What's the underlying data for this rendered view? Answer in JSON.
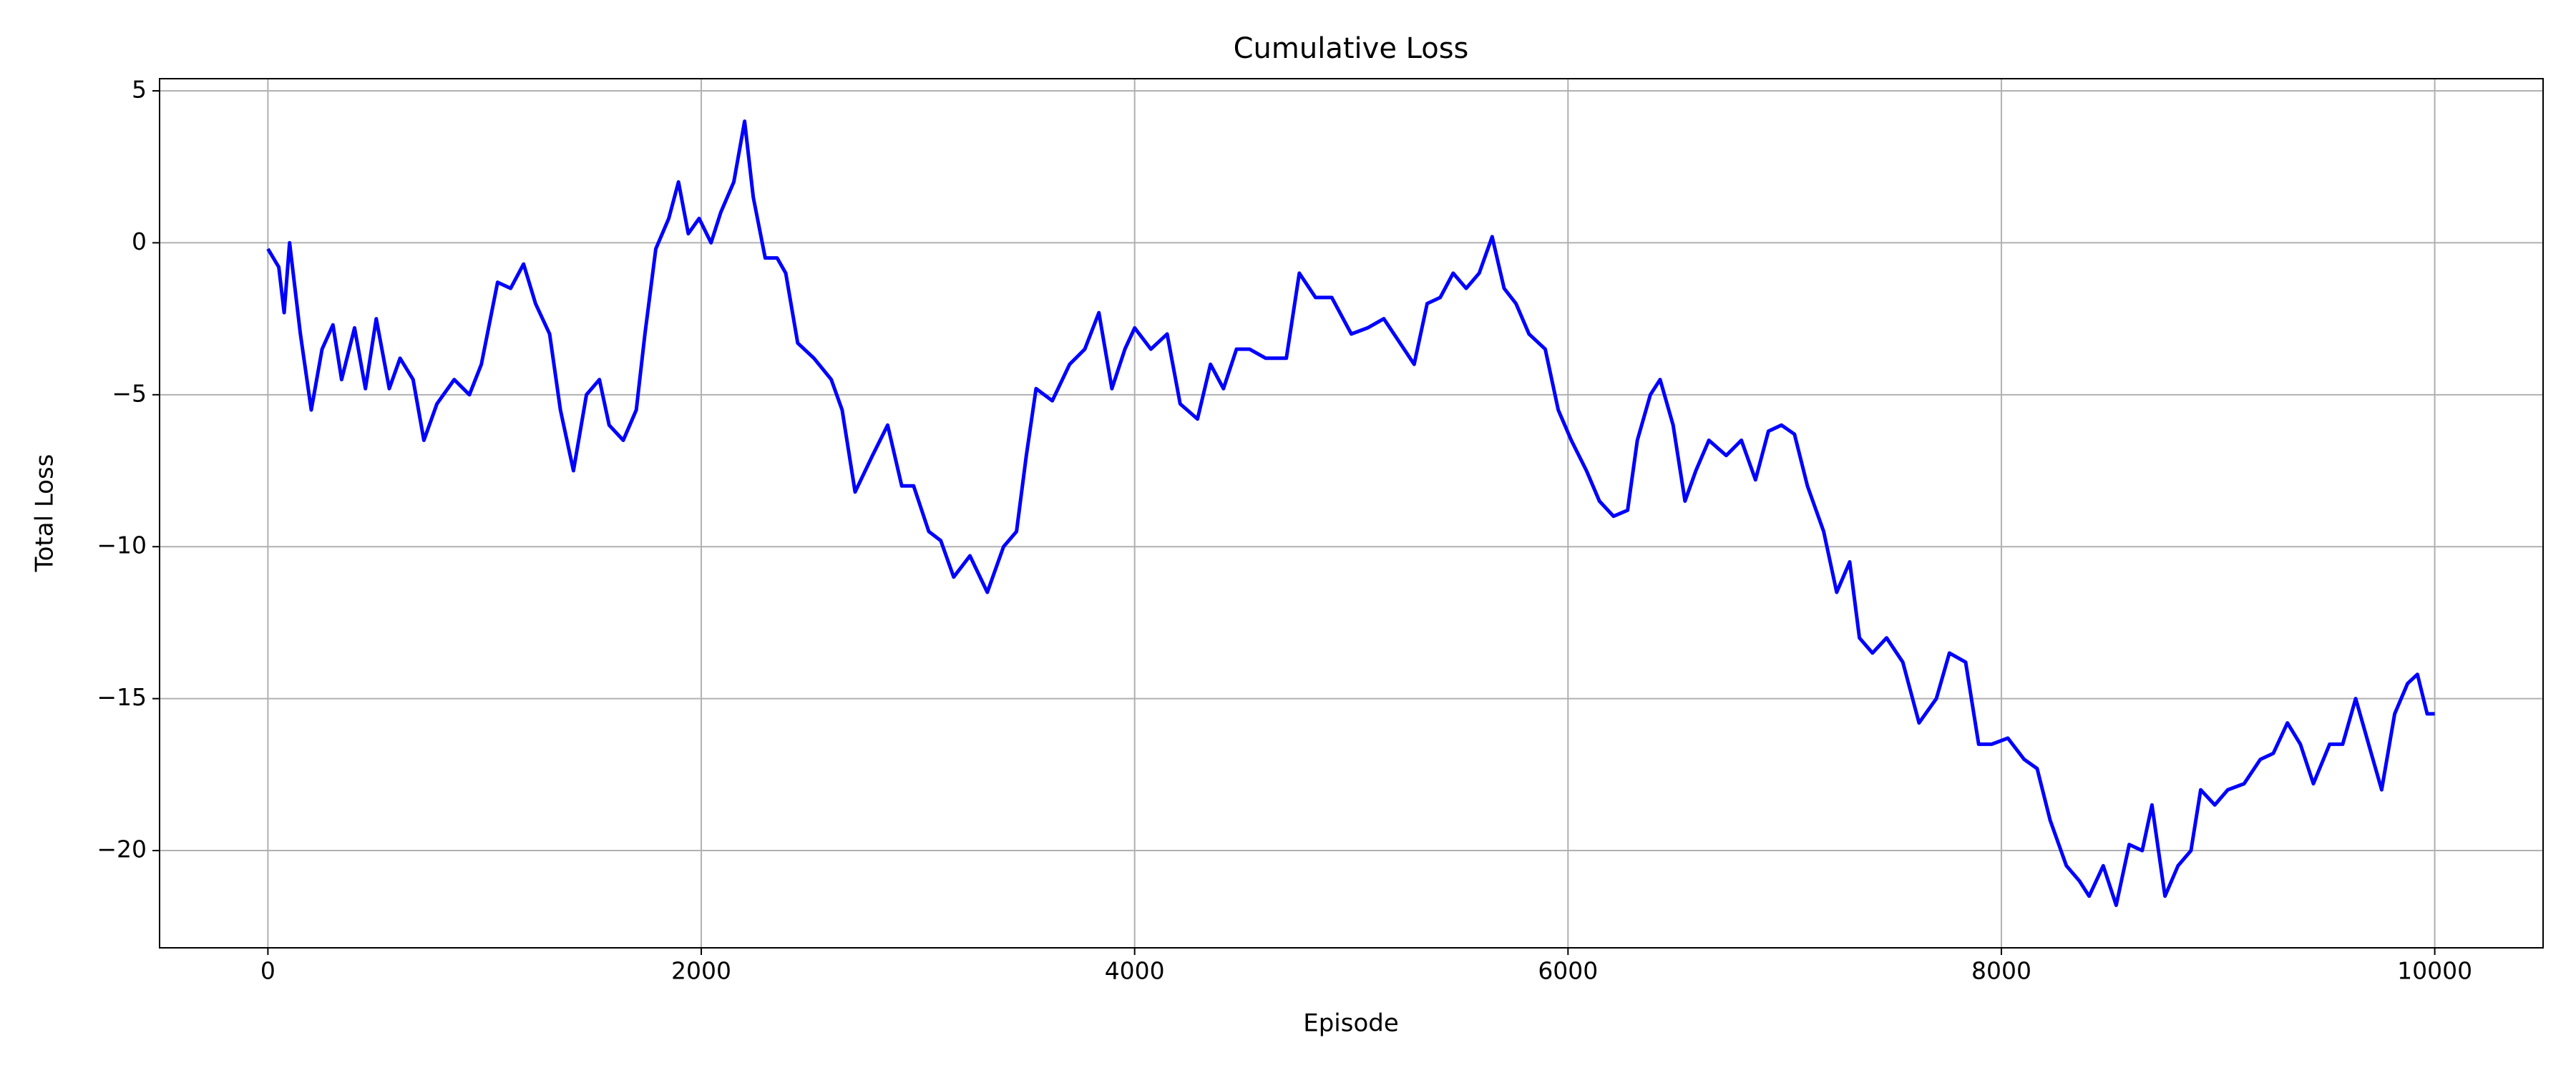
{
  "chart_data": {
    "type": "line",
    "title": "Cumulative Loss",
    "x_label": "Episode",
    "y_label": "Total Loss",
    "x": [
      0,
      50,
      75,
      100,
      150,
      200,
      250,
      300,
      340,
      400,
      450,
      500,
      560,
      610,
      670,
      720,
      780,
      860,
      930,
      985,
      1060,
      1120,
      1180,
      1235,
      1300,
      1350,
      1410,
      1470,
      1530,
      1575,
      1640,
      1700,
      1740,
      1790,
      1850,
      1895,
      1940,
      1990,
      2045,
      2090,
      2150,
      2200,
      2240,
      2295,
      2350,
      2390,
      2445,
      2520,
      2600,
      2650,
      2710,
      2790,
      2860,
      2925,
      2980,
      3050,
      3105,
      3165,
      3240,
      3320,
      3395,
      3455,
      3500,
      3545,
      3620,
      3700,
      3770,
      3835,
      3895,
      3955,
      4000,
      4075,
      4150,
      4210,
      4290,
      4350,
      4410,
      4470,
      4530,
      4605,
      4700,
      4760,
      4835,
      4910,
      5000,
      5075,
      5150,
      5225,
      5290,
      5350,
      5410,
      5470,
      5530,
      5590,
      5650,
      5705,
      5760,
      5820,
      5895,
      5955,
      6015,
      6085,
      6145,
      6210,
      6275,
      6320,
      6380,
      6425,
      6485,
      6540,
      6590,
      6650,
      6730,
      6800,
      6865,
      6925,
      6985,
      7045,
      7105,
      7180,
      7240,
      7300,
      7345,
      7405,
      7470,
      7545,
      7620,
      7700,
      7760,
      7835,
      7895,
      7955,
      8030,
      8105,
      8165,
      8225,
      8300,
      8360,
      8405,
      8470,
      8530,
      8590,
      8650,
      8695,
      8755,
      8815,
      8875,
      8920,
      8985,
      9045,
      9120,
      9195,
      9255,
      9320,
      9380,
      9440,
      9515,
      9575,
      9635,
      9695,
      9755,
      9815,
      9875,
      9920,
      9965,
      10000
    ],
    "series": [
      {
        "name": "Total Loss",
        "color": "#0000ff",
        "values": [
          -0.2,
          -0.8,
          -2.3,
          0,
          -3.0,
          -5.5,
          -3.5,
          -2.7,
          -4.5,
          -2.8,
          -4.8,
          -2.5,
          -4.8,
          -3.8,
          -4.5,
          -6.5,
          -5.3,
          -4.5,
          -5.0,
          -4.0,
          -1.3,
          -1.5,
          -0.7,
          -2.0,
          -3.0,
          -5.5,
          -7.5,
          -5.0,
          -4.5,
          -6.0,
          -6.5,
          -5.5,
          -3.0,
          -0.2,
          0.8,
          2.0,
          0.3,
          0.8,
          0,
          1.0,
          2.0,
          4.0,
          1.5,
          -0.5,
          -0.5,
          -1.0,
          -3.3,
          -3.8,
          -4.5,
          -5.5,
          -8.2,
          -7.0,
          -6.0,
          -8.0,
          -8.0,
          -9.5,
          -9.8,
          -11.0,
          -10.3,
          -11.5,
          -10.0,
          -9.5,
          -7.0,
          -4.8,
          -5.2,
          -4.0,
          -3.5,
          -2.3,
          -4.8,
          -3.5,
          -2.8,
          -3.5,
          -3.0,
          -5.3,
          -5.8,
          -4.0,
          -4.8,
          -3.5,
          -3.5,
          -3.8,
          -3.8,
          -1.0,
          -1.8,
          -1.8,
          -3.0,
          -2.8,
          -2.5,
          -3.3,
          -4.0,
          -2.0,
          -1.8,
          -1.0,
          -1.5,
          -1.0,
          0.2,
          -1.5,
          -2.0,
          -3.0,
          -3.5,
          -5.5,
          -6.5,
          -7.5,
          -8.5,
          -9.0,
          -8.8,
          -6.5,
          -5.0,
          -4.5,
          -6.0,
          -8.5,
          -7.5,
          -6.5,
          -7.0,
          -6.5,
          -7.8,
          -6.2,
          -6.0,
          -6.3,
          -8.0,
          -9.5,
          -11.5,
          -10.5,
          -13.0,
          -13.5,
          -13.0,
          -13.8,
          -15.8,
          -15.0,
          -13.5,
          -13.8,
          -16.5,
          -16.5,
          -16.3,
          -17.0,
          -17.3,
          -19.0,
          -20.5,
          -21.0,
          -21.5,
          -20.5,
          -21.8,
          -19.8,
          -20.0,
          -18.5,
          -21.5,
          -20.5,
          -20.0,
          -18.0,
          -18.5,
          -18.0,
          -17.8,
          -17.0,
          -16.8,
          -15.8,
          -16.5,
          -17.8,
          -16.5,
          -16.5,
          -15.0,
          -16.5,
          -18.0,
          -15.5,
          -14.5,
          -14.2,
          -15.5,
          -15.5
        ]
      }
    ],
    "xlim": [
      -500,
      10500
    ],
    "ylim": [
      -23.2,
      5.4
    ],
    "xticks": [
      0,
      2000,
      4000,
      6000,
      8000,
      10000
    ],
    "yticks": [
      {
        "value": -20,
        "label": "−20"
      },
      {
        "value": -15,
        "label": "−15"
      },
      {
        "value": -10,
        "label": "−10"
      },
      {
        "value": -5,
        "label": "−5"
      },
      0,
      5
    ],
    "grid": true
  }
}
